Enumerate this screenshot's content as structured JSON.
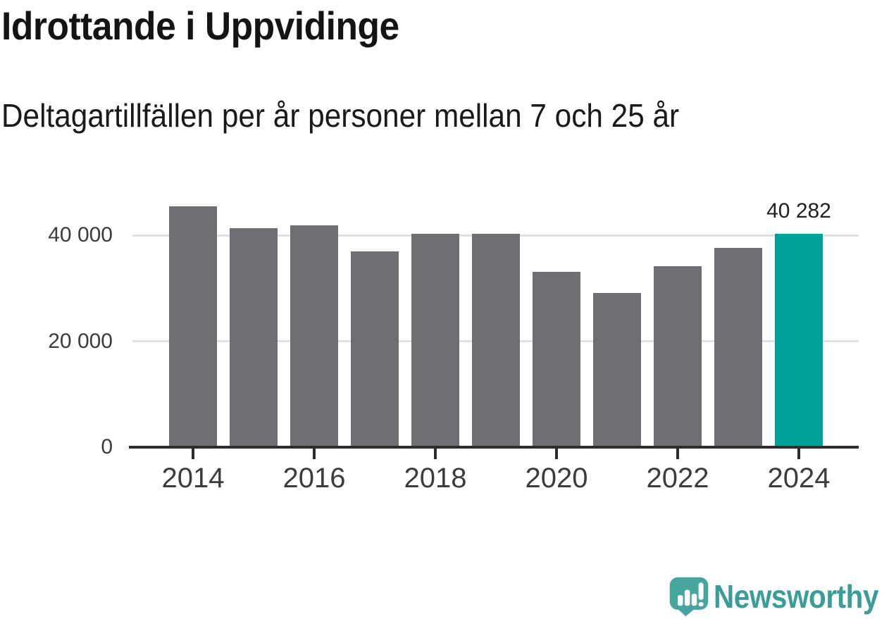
{
  "chart_data": {
    "type": "bar",
    "title": "Idrottande i Uppvidinge",
    "subtitle": "Deltagartillfällen per år personer mellan 7 och 25 år",
    "categories": [
      "2014",
      "2015",
      "2016",
      "2017",
      "2018",
      "2019",
      "2020",
      "2021",
      "2022",
      "2023",
      "2024"
    ],
    "values": [
      45500,
      41350,
      41800,
      36900,
      40250,
      40300,
      33100,
      29100,
      34100,
      37600,
      40282
    ],
    "highlight": {
      "category": "2024",
      "label": "40 282",
      "value": 40282
    },
    "y_axis": {
      "ticks": [
        {
          "label": "0",
          "value": 0
        },
        {
          "label": "20 000",
          "value": 20000
        },
        {
          "label": "40 000",
          "value": 40000
        }
      ],
      "range": [
        0,
        48500
      ]
    },
    "x_axis": {
      "tick_labels": [
        "2014",
        "2016",
        "2018",
        "2020",
        "2022",
        "2024"
      ]
    },
    "grid": true,
    "legend": false,
    "colors": {
      "bar": "#6e6e72",
      "highlight": "#00a099",
      "gridline": "#e1e1e1",
      "axis": "#2d2d2d",
      "tick_label": "#3c3c3c",
      "value_label": "#1f1f1f"
    }
  },
  "footer": {
    "brand": "Newsworthy",
    "logo_icon": "bar-chart-speech-bubble-icon",
    "logo_color": "#46a59e",
    "text_color": "#3b9d97"
  }
}
